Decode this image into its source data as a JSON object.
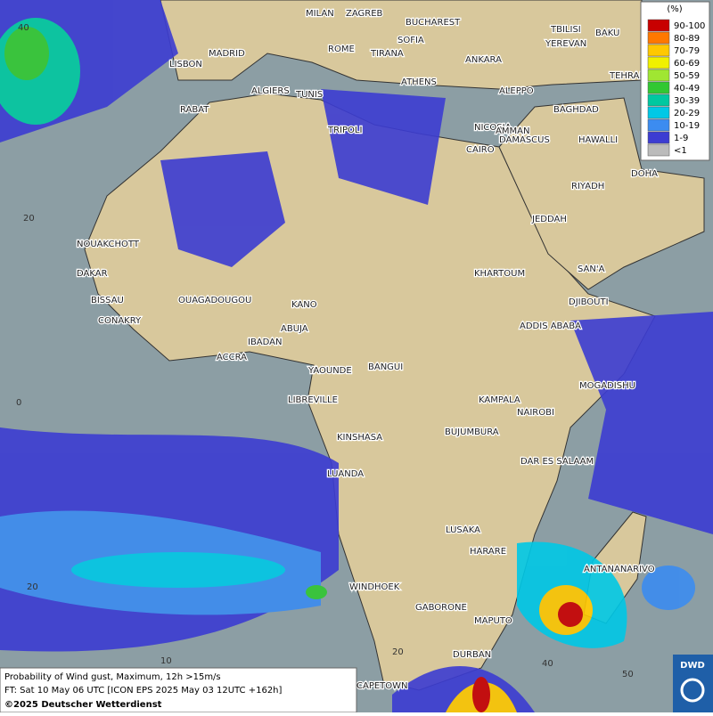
{
  "map": {
    "cities": [
      "MILAN",
      "ZAGREB",
      "BUCHAREST",
      "TBILISI",
      "BAKU",
      "ROME",
      "SOFIA",
      "YEREVAN",
      "LISBON",
      "MADRID",
      "TIRANA",
      "ANKARA",
      "TEHRAN",
      "ATHENS",
      "ALGIERS",
      "TUNIS",
      "ALEPPO",
      "RABAT",
      "NICOSIA",
      "BAGHDAD",
      "DAMASCUS",
      "TRIPOLI",
      "AMMAN",
      "CAIRO",
      "HAWALLI",
      "DOHA",
      "RIYADH",
      "JEDDAH",
      "NOUAKCHOTT",
      "DAKAR",
      "KHARTOUM",
      "SAN'A",
      "BISSAU",
      "OUAGADOUGOU",
      "DJIBOUTI",
      "CONAKRY",
      "KANO",
      "ABUJA",
      "ADDIS ABABA",
      "IBADAN",
      "ACCRA",
      "YAOUNDE",
      "BANGUI",
      "MOGADISHU",
      "LIBREVILLE",
      "KAMPALA",
      "NAIROBI",
      "KINSHASA",
      "BUJUMBURA",
      "DAR ES SALAAM",
      "LUANDA",
      "LUSAKA",
      "HARARE",
      "ANTANANARIVO",
      "WINDHOEK",
      "GABORONE",
      "MAPUTO",
      "DURBAN",
      "CAPETOWN"
    ],
    "lat_labels": [
      40,
      20,
      0,
      20
    ],
    "lon_labels": [
      10,
      20,
      40,
      50
    ]
  },
  "legend": {
    "title": "(%)",
    "entries": [
      {
        "label": "90-100",
        "color": "#c80000"
      },
      {
        "label": "80-89",
        "color": "#ff7800"
      },
      {
        "label": "70-79",
        "color": "#ffc800"
      },
      {
        "label": "60-69",
        "color": "#f0f000"
      },
      {
        "label": "50-59",
        "color": "#a0e632"
      },
      {
        "label": "40-49",
        "color": "#32c832"
      },
      {
        "label": "30-39",
        "color": "#00c8a0"
      },
      {
        "label": "20-29",
        "color": "#00c8e6"
      },
      {
        "label": "10-19",
        "color": "#3c8cf0"
      },
      {
        "label": "1-9",
        "color": "#3c3cd2"
      },
      {
        "label": "<1",
        "color": "#bbbbbb"
      }
    ]
  },
  "caption": {
    "line1": "Probability of Wind gust, Maximum, 12h >15m/s",
    "line2": "FT: Sat 10 May 06 UTC [ICON EPS 2025 May 03 12UTC +162h]",
    "line3": "©2025 Deutscher Wetterdienst"
  },
  "logo": {
    "text": "DWD"
  }
}
